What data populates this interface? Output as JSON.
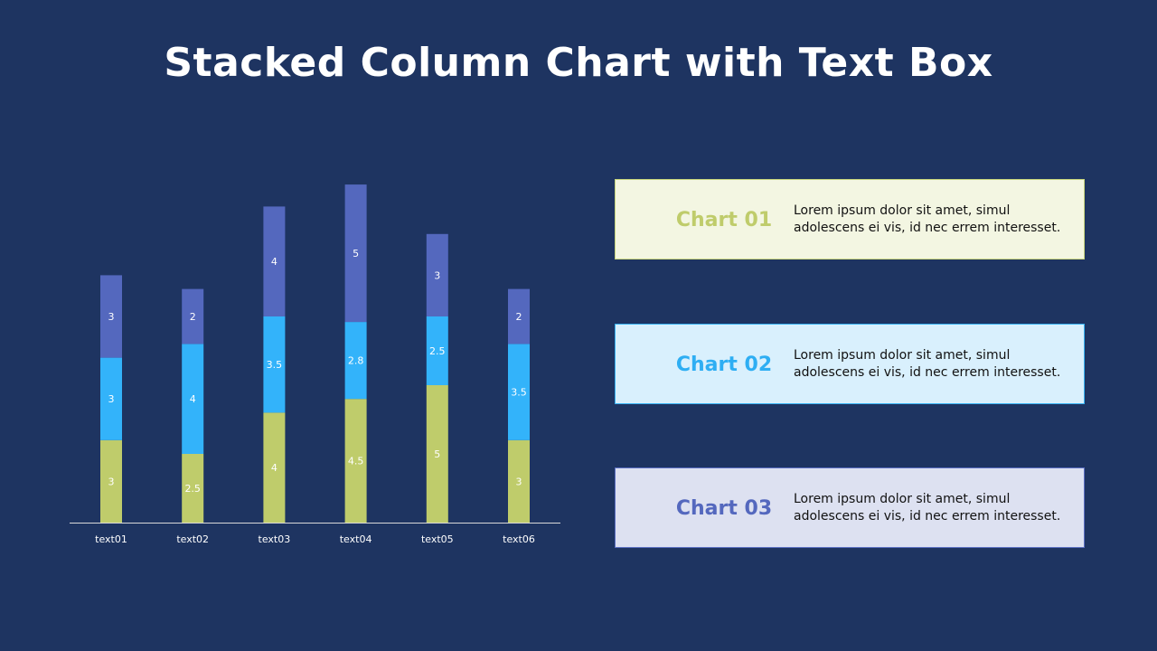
{
  "title": "Stacked Column Chart with Text Box",
  "chart_data": {
    "type": "bar",
    "stacked": true,
    "categories": [
      "text01",
      "text02",
      "text03",
      "text04",
      "text05",
      "text06"
    ],
    "series": [
      {
        "values": [
          3,
          2.5,
          4,
          4.5,
          5,
          3
        ],
        "color": "#bfcc6b"
      },
      {
        "values": [
          3,
          4,
          3.5,
          2.8,
          2.5,
          3.5
        ],
        "color": "#33b3fa"
      },
      {
        "values": [
          3,
          2,
          4,
          5,
          3,
          2
        ],
        "color": "#5468be"
      }
    ],
    "data_labels": true,
    "grid": false,
    "legend": "none"
  },
  "boxes": [
    {
      "title": "Chart 01",
      "text": "Lorem ipsum dolor sit amet, simul adolescens ei vis, id nec errem interesset."
    },
    {
      "title": "Chart 02",
      "text": "Lorem ipsum dolor sit amet, simul adolescens ei vis, id nec errem interesset."
    },
    {
      "title": "Chart 03",
      "text": "Lorem ipsum dolor sit amet, simul adolescens ei vis, id nec errem interesset."
    }
  ]
}
